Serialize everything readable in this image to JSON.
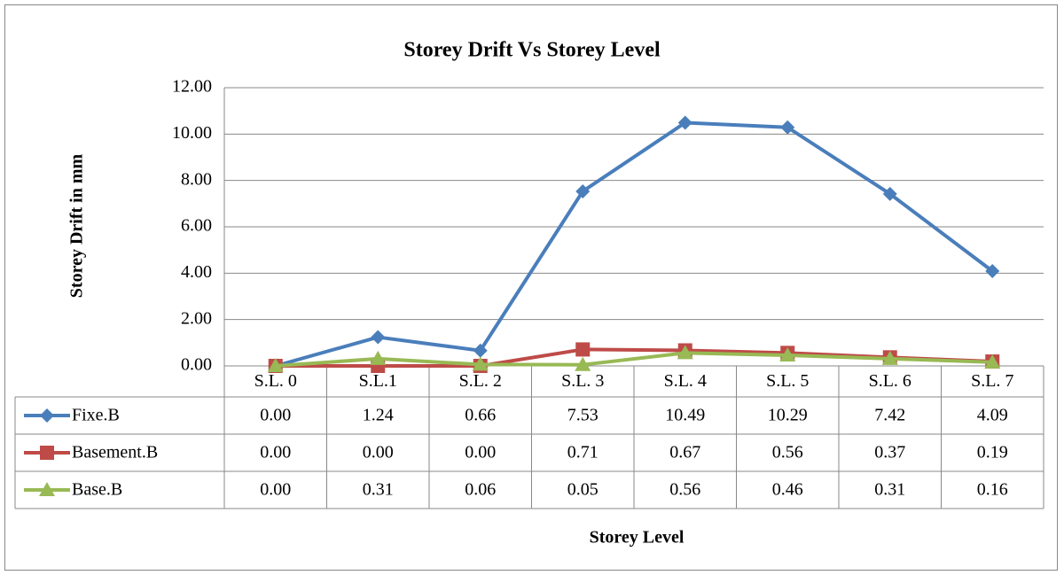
{
  "chart_data": {
    "type": "line",
    "title": "Storey Drift Vs Storey Level",
    "x_label": "Storey Level",
    "y_label": "Storey Drift in mm",
    "categories": [
      "S.L. 0",
      "S.L.1",
      "S.L. 2",
      "S.L. 3",
      "S.L. 4",
      "S.L. 5",
      "S.L. 6",
      "S.L. 7"
    ],
    "series": [
      {
        "name": "Fixe.B",
        "color": "#4a7ebb",
        "marker": "diamond",
        "values": [
          0,
          1.24,
          0.66,
          7.53,
          10.49,
          10.29,
          7.42,
          4.09
        ],
        "value_labels": [
          "0.00",
          "1.24",
          "0.66",
          "7.53",
          "10.49",
          "10.29",
          "7.42",
          "4.09"
        ]
      },
      {
        "name": "Basement.B",
        "color": "#be4b48",
        "marker": "square",
        "values": [
          0,
          0,
          0,
          0.71,
          0.67,
          0.56,
          0.37,
          0.19
        ],
        "value_labels": [
          "0.00",
          "0.00",
          "0.00",
          "0.71",
          "0.67",
          "0.56",
          "0.37",
          "0.19"
        ]
      },
      {
        "name": "Base.B",
        "color": "#98b954",
        "marker": "triangle",
        "values": [
          0,
          0.31,
          0.06,
          0.05,
          0.56,
          0.46,
          0.31,
          0.16
        ],
        "value_labels": [
          "0.00",
          "0.31",
          "0.06",
          "0.05",
          "0.56",
          "0.46",
          "0.31",
          "0.16"
        ]
      }
    ],
    "ylim": [
      0,
      12
    ],
    "yticks": [
      {
        "value": 0,
        "label": "0.00"
      },
      {
        "value": 2,
        "label": "2.00"
      },
      {
        "value": 4,
        "label": "4.00"
      },
      {
        "value": 6,
        "label": "6.00"
      },
      {
        "value": 8,
        "label": "8.00"
      },
      {
        "value": 10,
        "label": "10.00"
      },
      {
        "value": 12,
        "label": "12.00"
      }
    ],
    "grid": true
  }
}
